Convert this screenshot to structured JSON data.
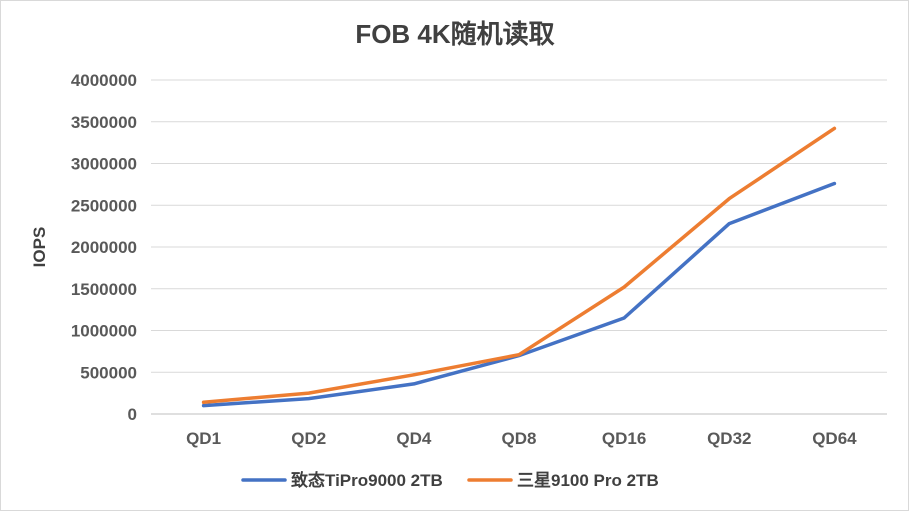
{
  "chart_data": {
    "type": "line",
    "title": "FOB 4K随机读取",
    "xlabel": "",
    "ylabel": "IOPS",
    "categories": [
      "QD1",
      "QD2",
      "QD4",
      "QD8",
      "QD16",
      "QD32",
      "QD64"
    ],
    "ylim": [
      0,
      4000000
    ],
    "yticks": [
      "0",
      "500000",
      "1000000",
      "1500000",
      "2000000",
      "2500000",
      "3000000",
      "3500000",
      "4000000"
    ],
    "grid": true,
    "legend_position": "bottom",
    "series": [
      {
        "name": "致态TiPro9000 2TB",
        "color": "#4472c4",
        "values": [
          100000,
          185000,
          360000,
          700000,
          1150000,
          2280000,
          2760000
        ]
      },
      {
        "name": "三星9100 Pro 2TB",
        "color": "#ed7d31",
        "values": [
          140000,
          250000,
          470000,
          710000,
          1520000,
          2580000,
          3420000
        ]
      }
    ]
  }
}
